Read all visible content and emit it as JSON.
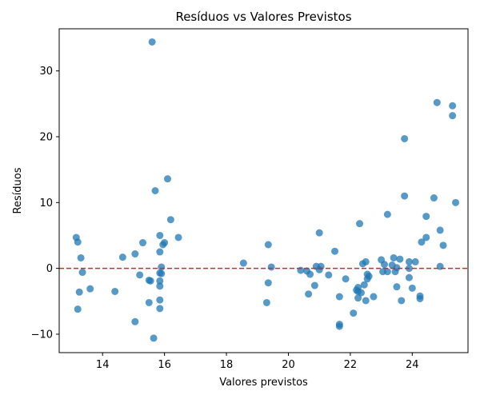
{
  "chart_data": {
    "type": "scatter",
    "title": "Resíduos vs Valores Previstos",
    "xlabel": "Valores previstos",
    "ylabel": "Resíduos",
    "xlim": [
      12.6,
      25.8
    ],
    "ylim": [
      -12.8,
      36.4
    ],
    "xticks": [
      14,
      16,
      18,
      20,
      22,
      24
    ],
    "yticks": [
      -10,
      0,
      10,
      20,
      30
    ],
    "grid": false,
    "reference_line": {
      "y": 0,
      "style": "dashed",
      "color": "#d62728"
    },
    "marker_color": "#1f77b4",
    "marker_alpha": 0.75,
    "points": [
      [
        15.6,
        34.4
      ],
      [
        24.8,
        25.2
      ],
      [
        25.3,
        24.7
      ],
      [
        25.3,
        23.2
      ],
      [
        23.75,
        19.7
      ],
      [
        16.1,
        13.6
      ],
      [
        15.7,
        11.8
      ],
      [
        23.75,
        11.0
      ],
      [
        24.7,
        10.7
      ],
      [
        25.4,
        10.0
      ],
      [
        22.3,
        6.8
      ],
      [
        16.2,
        7.4
      ],
      [
        24.45,
        7.9
      ],
      [
        23.2,
        8.2
      ],
      [
        24.9,
        5.8
      ],
      [
        21.0,
        5.4
      ],
      [
        15.85,
        5.0
      ],
      [
        16.45,
        4.7
      ],
      [
        13.15,
        4.7
      ],
      [
        13.2,
        4.0
      ],
      [
        15.3,
        3.9
      ],
      [
        16.0,
        3.9
      ],
      [
        15.95,
        3.6
      ],
      [
        19.35,
        3.6
      ],
      [
        24.45,
        4.7
      ],
      [
        24.3,
        4.0
      ],
      [
        25.0,
        3.5
      ],
      [
        21.5,
        2.6
      ],
      [
        15.85,
        2.5
      ],
      [
        15.05,
        2.2
      ],
      [
        14.65,
        1.7
      ],
      [
        13.3,
        1.6
      ],
      [
        23.4,
        1.6
      ],
      [
        23.6,
        1.4
      ],
      [
        23.0,
        1.3
      ],
      [
        23.9,
        1.0
      ],
      [
        24.1,
        1.0
      ],
      [
        22.5,
        1.0
      ],
      [
        22.4,
        0.7
      ],
      [
        18.55,
        0.8
      ],
      [
        23.1,
        0.6
      ],
      [
        23.35,
        0.5
      ],
      [
        20.9,
        0.3
      ],
      [
        21.05,
        0.3
      ],
      [
        19.45,
        0.2
      ],
      [
        15.9,
        0.2
      ],
      [
        24.9,
        0.3
      ],
      [
        23.5,
        0.1
      ],
      [
        23.9,
        0.0
      ],
      [
        21.0,
        -0.2
      ],
      [
        20.4,
        -0.3
      ],
      [
        20.6,
        -0.4
      ],
      [
        23.05,
        -0.5
      ],
      [
        23.2,
        -0.5
      ],
      [
        23.45,
        -0.5
      ],
      [
        13.35,
        -0.6
      ],
      [
        15.85,
        -0.7
      ],
      [
        15.9,
        -0.8
      ],
      [
        20.7,
        -0.9
      ],
      [
        22.55,
        -0.9
      ],
      [
        15.2,
        -1.0
      ],
      [
        21.3,
        -1.0
      ],
      [
        22.6,
        -1.2
      ],
      [
        22.55,
        -1.6
      ],
      [
        23.9,
        -1.4
      ],
      [
        21.85,
        -1.6
      ],
      [
        15.5,
        -1.8
      ],
      [
        15.55,
        -1.9
      ],
      [
        15.85,
        -1.9
      ],
      [
        19.35,
        -2.2
      ],
      [
        20.85,
        -2.6
      ],
      [
        22.45,
        -2.5
      ],
      [
        15.85,
        -2.7
      ],
      [
        22.25,
        -2.9
      ],
      [
        23.5,
        -2.8
      ],
      [
        24.0,
        -3.0
      ],
      [
        13.6,
        -3.1
      ],
      [
        22.2,
        -3.3
      ],
      [
        22.25,
        -3.5
      ],
      [
        14.4,
        -3.5
      ],
      [
        13.25,
        -3.6
      ],
      [
        20.65,
        -3.9
      ],
      [
        22.35,
        -3.7
      ],
      [
        22.75,
        -4.3
      ],
      [
        22.25,
        -4.5
      ],
      [
        21.65,
        -4.3
      ],
      [
        24.25,
        -4.2
      ],
      [
        24.25,
        -4.6
      ],
      [
        15.85,
        -4.8
      ],
      [
        22.5,
        -4.9
      ],
      [
        23.65,
        -4.9
      ],
      [
        15.5,
        -5.2
      ],
      [
        19.3,
        -5.2
      ],
      [
        15.85,
        -6.1
      ],
      [
        13.2,
        -6.2
      ],
      [
        22.1,
        -6.8
      ],
      [
        15.05,
        -8.1
      ],
      [
        21.65,
        -8.5
      ],
      [
        21.65,
        -8.8
      ],
      [
        15.65,
        -10.6
      ]
    ]
  }
}
